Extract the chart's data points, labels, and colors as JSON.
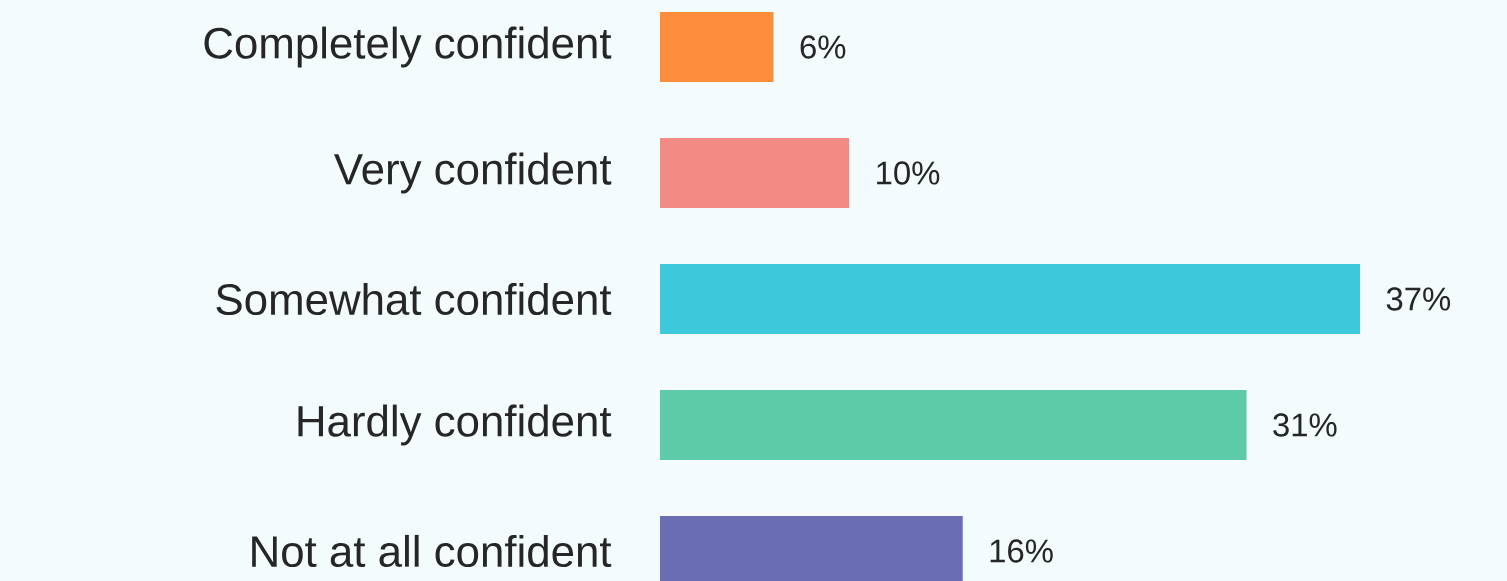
{
  "chart_data": {
    "type": "bar",
    "orientation": "horizontal",
    "categories": [
      "Completely confident",
      "Very confident",
      "Somewhat confident",
      "Hardly confident",
      "Not at all confident"
    ],
    "values": [
      6,
      10,
      37,
      31,
      16
    ],
    "colors": [
      "#fb8d3d",
      "#f28b84",
      "#3ec8dc",
      "#5ecba8",
      "#6a6db3"
    ],
    "value_labels": [
      "6%",
      "10%",
      "37%",
      "31%",
      "16%"
    ]
  }
}
